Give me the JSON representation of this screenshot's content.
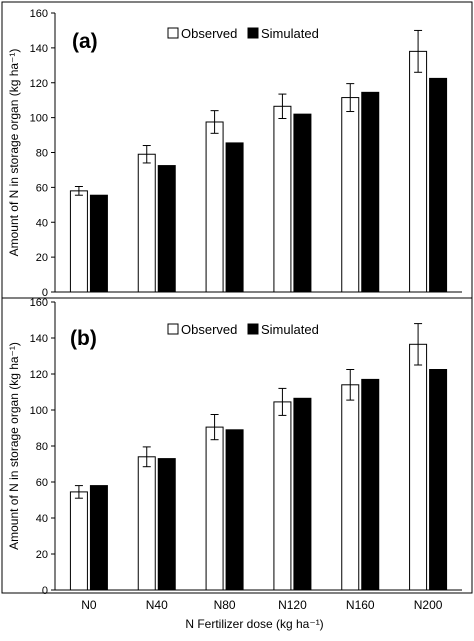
{
  "chart_data": [
    {
      "type": "bar",
      "panel_label": "(a)",
      "categories": [
        "N0",
        "N40",
        "N80",
        "N120",
        "N160",
        "N200"
      ],
      "series": [
        {
          "name": "Observed",
          "values": [
            58,
            79,
            97.5,
            106.5,
            111.5,
            138
          ],
          "error": [
            2.5,
            5,
            6.5,
            7,
            8,
            12
          ],
          "color": "#ffffff",
          "stroke": "#000000"
        },
        {
          "name": "Simulated",
          "values": [
            55.5,
            72.5,
            85.5,
            102,
            114.5,
            122.5
          ],
          "color": "#000000",
          "stroke": "#000000"
        }
      ],
      "ylabel": "Amount of N in storage organ (kg ha⁻¹)",
      "xlabel": "",
      "ylim": [
        0,
        160
      ],
      "yticks": [
        "0",
        "20",
        "40",
        "60",
        "80",
        "100",
        "120",
        "140",
        "160"
      ],
      "grid": false,
      "legend": "top-center"
    },
    {
      "type": "bar",
      "panel_label": "(b)",
      "categories": [
        "N0",
        "N40",
        "N80",
        "N120",
        "N160",
        "N200"
      ],
      "series": [
        {
          "name": "Observed",
          "values": [
            54.5,
            74,
            90.5,
            104.5,
            114,
            136.5
          ],
          "error": [
            3.5,
            5.5,
            7,
            7.5,
            8.5,
            11.5
          ],
          "color": "#ffffff",
          "stroke": "#000000"
        },
        {
          "name": "Simulated",
          "values": [
            58,
            73,
            89,
            106.5,
            117,
            122.5
          ],
          "color": "#000000",
          "stroke": "#000000"
        }
      ],
      "ylabel": "Amount of N in storage organ (kg ha⁻¹)",
      "xlabel": "N Fertilizer dose (kg ha⁻¹)",
      "ylim": [
        0,
        160
      ],
      "yticks": [
        "0",
        "20",
        "40",
        "60",
        "80",
        "100",
        "120",
        "140",
        "160"
      ],
      "grid": false,
      "legend": "top-center"
    }
  ]
}
